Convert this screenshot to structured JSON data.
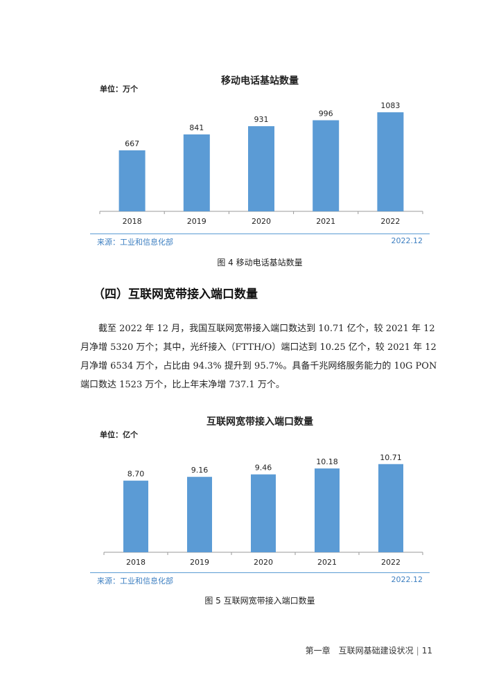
{
  "chart_data": [
    {
      "type": "bar",
      "title": "移动电话基站数量",
      "unit": "单位：万个",
      "categories": [
        "2018",
        "2019",
        "2020",
        "2021",
        "2022"
      ],
      "values": [
        667,
        841,
        931,
        996,
        1083
      ],
      "value_labels": [
        "667",
        "841",
        "931",
        "996",
        "1083"
      ],
      "ylim": [
        0,
        1250
      ],
      "grid": false,
      "bar_color": "#5b9bd5",
      "source": "来源：工业和信息化部",
      "date": "2022.12",
      "caption": "图 4  移动电话基站数量"
    },
    {
      "type": "bar",
      "title": "互联网宽带接入端口数量",
      "unit": "单位：亿个",
      "categories": [
        "2018",
        "2019",
        "2020",
        "2021",
        "2022"
      ],
      "values": [
        8.7,
        9.16,
        9.46,
        10.18,
        10.71
      ],
      "value_labels": [
        "8.70",
        "9.16",
        "9.46",
        "10.18",
        "10.71"
      ],
      "ylim": [
        0,
        13.3
      ],
      "grid": false,
      "bar_color": "#5b9bd5",
      "source": "来源：工业和信息化部",
      "date": "2022.12",
      "caption": "图 5  互联网宽带接入端口数量"
    }
  ],
  "section_heading": "（四）互联网宽带接入端口数量",
  "paragraph_lines": [
    "截至 2022 年 12 月，我国互联网宽带接入端口数达到 10.71 亿个，较 2021 年 12",
    "月净增 5320 万个；其中，光纤接入（FTTH/O）端口达到 10.25 亿个，较 2021 年 12",
    "月净增 6534 万个，占比由 94.3% 提升到 95.7%。具备千兆网络服务能力的 10G PON",
    "端口数达 1523 万个，比上年末净增 737.1 万个。"
  ],
  "footer": {
    "chapter": "第一章　互联网基础建设状况",
    "page": "11"
  }
}
